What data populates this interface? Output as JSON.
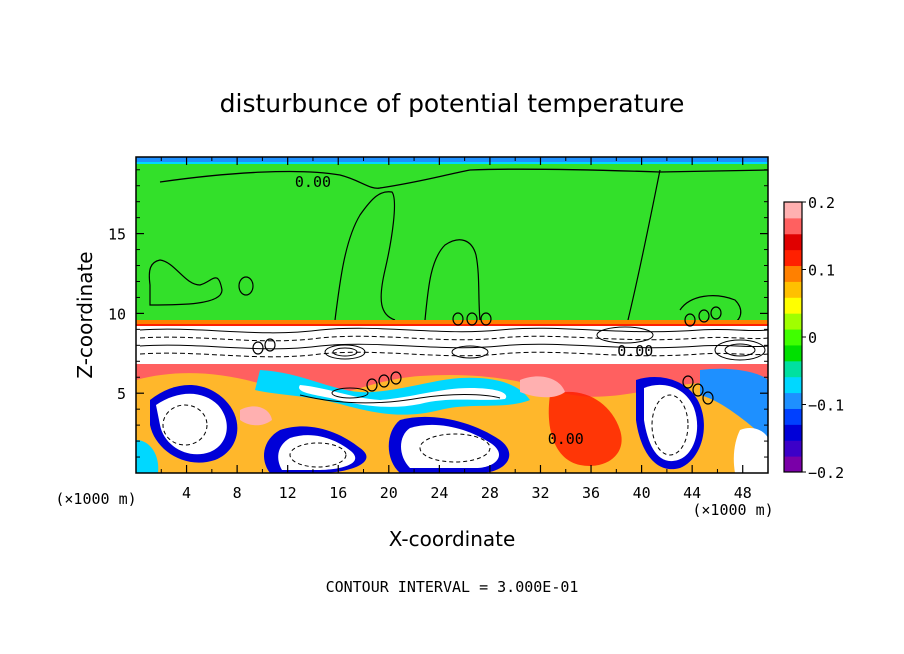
{
  "chart_data": {
    "type": "heatmap",
    "title": "disturbunce of potential temperature",
    "xlabel": "X-coordinate",
    "ylabel": "Z-coordinate",
    "x_unit": "(×1000 m)",
    "z_unit": "(×1000 m)",
    "xlim": [
      0,
      50
    ],
    "ylim": [
      0,
      19.8
    ],
    "x_ticks": [
      4,
      8,
      12,
      16,
      20,
      24,
      28,
      32,
      36,
      40,
      44,
      48
    ],
    "y_ticks": [
      5,
      10,
      15
    ],
    "colorbar": {
      "range": [
        -0.2,
        0.2
      ],
      "tick_values": [
        -0.2,
        -0.1,
        0,
        0.1,
        0.2
      ],
      "tick_labels": [
        "−0.2",
        "−0.1",
        "0",
        "0.1",
        "0.2"
      ],
      "colors": [
        "#7a00a8",
        "#3c00c8",
        "#0000d8",
        "#0040ff",
        "#1e90ff",
        "#00d8ff",
        "#00e0a0",
        "#00e000",
        "#40ff00",
        "#a0ff00",
        "#ffff00",
        "#ffc000",
        "#ff8000",
        "#ff2000",
        "#e00000",
        "#ff6060",
        "#ffb0b0"
      ]
    },
    "contour_interval_label": "CONTOUR INTERVAL = 3.000E-01",
    "contour_labels": [
      {
        "text": "0.00",
        "x": 14,
        "z": 18.3
      },
      {
        "text": "0.00",
        "x": 34,
        "z": 2.2
      },
      {
        "text": "0.00",
        "x": 39.5,
        "z": 7.7
      }
    ]
  }
}
